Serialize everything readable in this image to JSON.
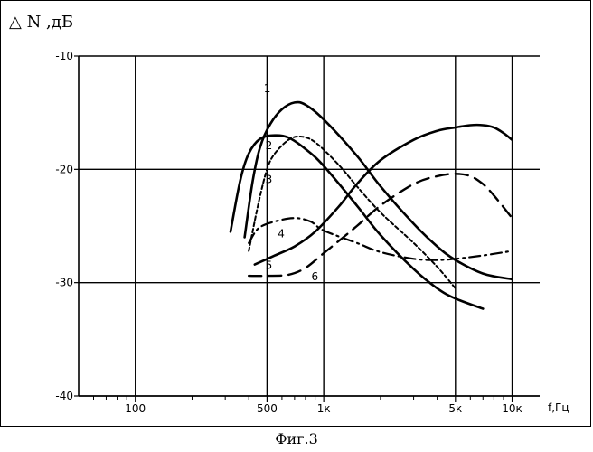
{
  "caption": "Фиг.3",
  "chart_data": {
    "type": "line",
    "title": "",
    "ylabel": "N ,дБ",
    "ylabel_symbol": "△",
    "xlabel": "f,Гц",
    "x_scale": "log",
    "xlim": [
      50,
      14000
    ],
    "ylim": [
      -40,
      -10
    ],
    "grid": true,
    "x_ticks": [
      {
        "value": 100,
        "label": "100"
      },
      {
        "value": 500,
        "label": "500"
      },
      {
        "value": 1000,
        "label": "1к"
      },
      {
        "value": 5000,
        "label": "5к"
      },
      {
        "value": 10000,
        "label": "10к"
      }
    ],
    "y_ticks": [
      {
        "value": -10,
        "label": "-10"
      },
      {
        "value": -20,
        "label": "-20"
      },
      {
        "value": -30,
        "label": "-30"
      },
      {
        "value": -40,
        "label": "-40"
      }
    ],
    "x_minor_ticks": [
      60,
      70,
      80,
      90,
      200,
      300,
      400,
      600,
      700,
      800,
      900,
      2000,
      3000,
      4000,
      6000,
      7000,
      8000,
      9000
    ],
    "series": [
      {
        "name": "1",
        "style": "solid",
        "label_at": [
          480,
          -13.2
        ],
        "points": [
          [
            380,
            -26
          ],
          [
            420,
            -21
          ],
          [
            460,
            -18
          ],
          [
            520,
            -16
          ],
          [
            600,
            -14.7
          ],
          [
            700,
            -14.1
          ],
          [
            800,
            -14.3
          ],
          [
            1000,
            -15.6
          ],
          [
            1500,
            -18.8
          ],
          [
            2000,
            -21.5
          ],
          [
            3000,
            -24.8
          ],
          [
            4000,
            -26.8
          ],
          [
            5000,
            -28
          ],
          [
            7000,
            -29.2
          ],
          [
            10000,
            -29.7
          ]
        ]
      },
      {
        "name": "2",
        "style": "solid",
        "label_at": [
          490,
          -18.2
        ],
        "points": [
          [
            320,
            -25.5
          ],
          [
            360,
            -21
          ],
          [
            400,
            -18.6
          ],
          [
            460,
            -17.3
          ],
          [
            550,
            -17
          ],
          [
            650,
            -17.2
          ],
          [
            800,
            -18.2
          ],
          [
            1000,
            -19.7
          ],
          [
            1500,
            -23.2
          ],
          [
            2000,
            -25.8
          ],
          [
            3000,
            -28.8
          ],
          [
            4000,
            -30.5
          ],
          [
            5000,
            -31.4
          ],
          [
            7000,
            -32.3
          ]
        ]
      },
      {
        "name": "3",
        "style": "dotted",
        "label_at": [
          490,
          -21.2
        ],
        "points": [
          [
            400,
            -27.2
          ],
          [
            450,
            -23
          ],
          [
            500,
            -20
          ],
          [
            550,
            -18.6
          ],
          [
            650,
            -17.4
          ],
          [
            750,
            -17.1
          ],
          [
            900,
            -17.6
          ],
          [
            1200,
            -19.6
          ],
          [
            1500,
            -21.5
          ],
          [
            2000,
            -23.8
          ],
          [
            3000,
            -26.5
          ],
          [
            4000,
            -28.6
          ],
          [
            5000,
            -30.5
          ]
        ]
      },
      {
        "name": "4",
        "style": "dashdot",
        "label_at": [
          570,
          -26
        ],
        "points": [
          [
            400,
            -26.5
          ],
          [
            450,
            -25.2
          ],
          [
            550,
            -24.6
          ],
          [
            700,
            -24.3
          ],
          [
            850,
            -24.6
          ],
          [
            1000,
            -25.4
          ],
          [
            1500,
            -26.5
          ],
          [
            2000,
            -27.3
          ],
          [
            3000,
            -27.9
          ],
          [
            4000,
            -28
          ],
          [
            5000,
            -27.9
          ],
          [
            7000,
            -27.6
          ],
          [
            10000,
            -27.2
          ]
        ]
      },
      {
        "name": "5",
        "style": "solid",
        "label_at": [
          490,
          -28.8
        ],
        "points": [
          [
            430,
            -28.4
          ],
          [
            550,
            -27.6
          ],
          [
            700,
            -26.8
          ],
          [
            900,
            -25.5
          ],
          [
            1200,
            -23.3
          ],
          [
            1500,
            -21.3
          ],
          [
            2000,
            -19.2
          ],
          [
            3000,
            -17.4
          ],
          [
            4000,
            -16.6
          ],
          [
            5000,
            -16.3
          ],
          [
            6000,
            -16.1
          ],
          [
            7000,
            -16.1
          ],
          [
            8000,
            -16.3
          ],
          [
            9000,
            -16.8
          ],
          [
            10000,
            -17.4
          ]
        ]
      },
      {
        "name": "6",
        "style": "dashed",
        "label_at": [
          860,
          -29.8
        ],
        "points": [
          [
            400,
            -29.4
          ],
          [
            500,
            -29.4
          ],
          [
            650,
            -29.3
          ],
          [
            800,
            -28.7
          ],
          [
            1000,
            -27.4
          ],
          [
            1500,
            -25
          ],
          [
            2000,
            -23.2
          ],
          [
            3000,
            -21.3
          ],
          [
            4000,
            -20.6
          ],
          [
            5000,
            -20.4
          ],
          [
            6000,
            -20.6
          ],
          [
            7000,
            -21.3
          ],
          [
            8000,
            -22.3
          ],
          [
            10000,
            -24.3
          ]
        ]
      }
    ]
  }
}
